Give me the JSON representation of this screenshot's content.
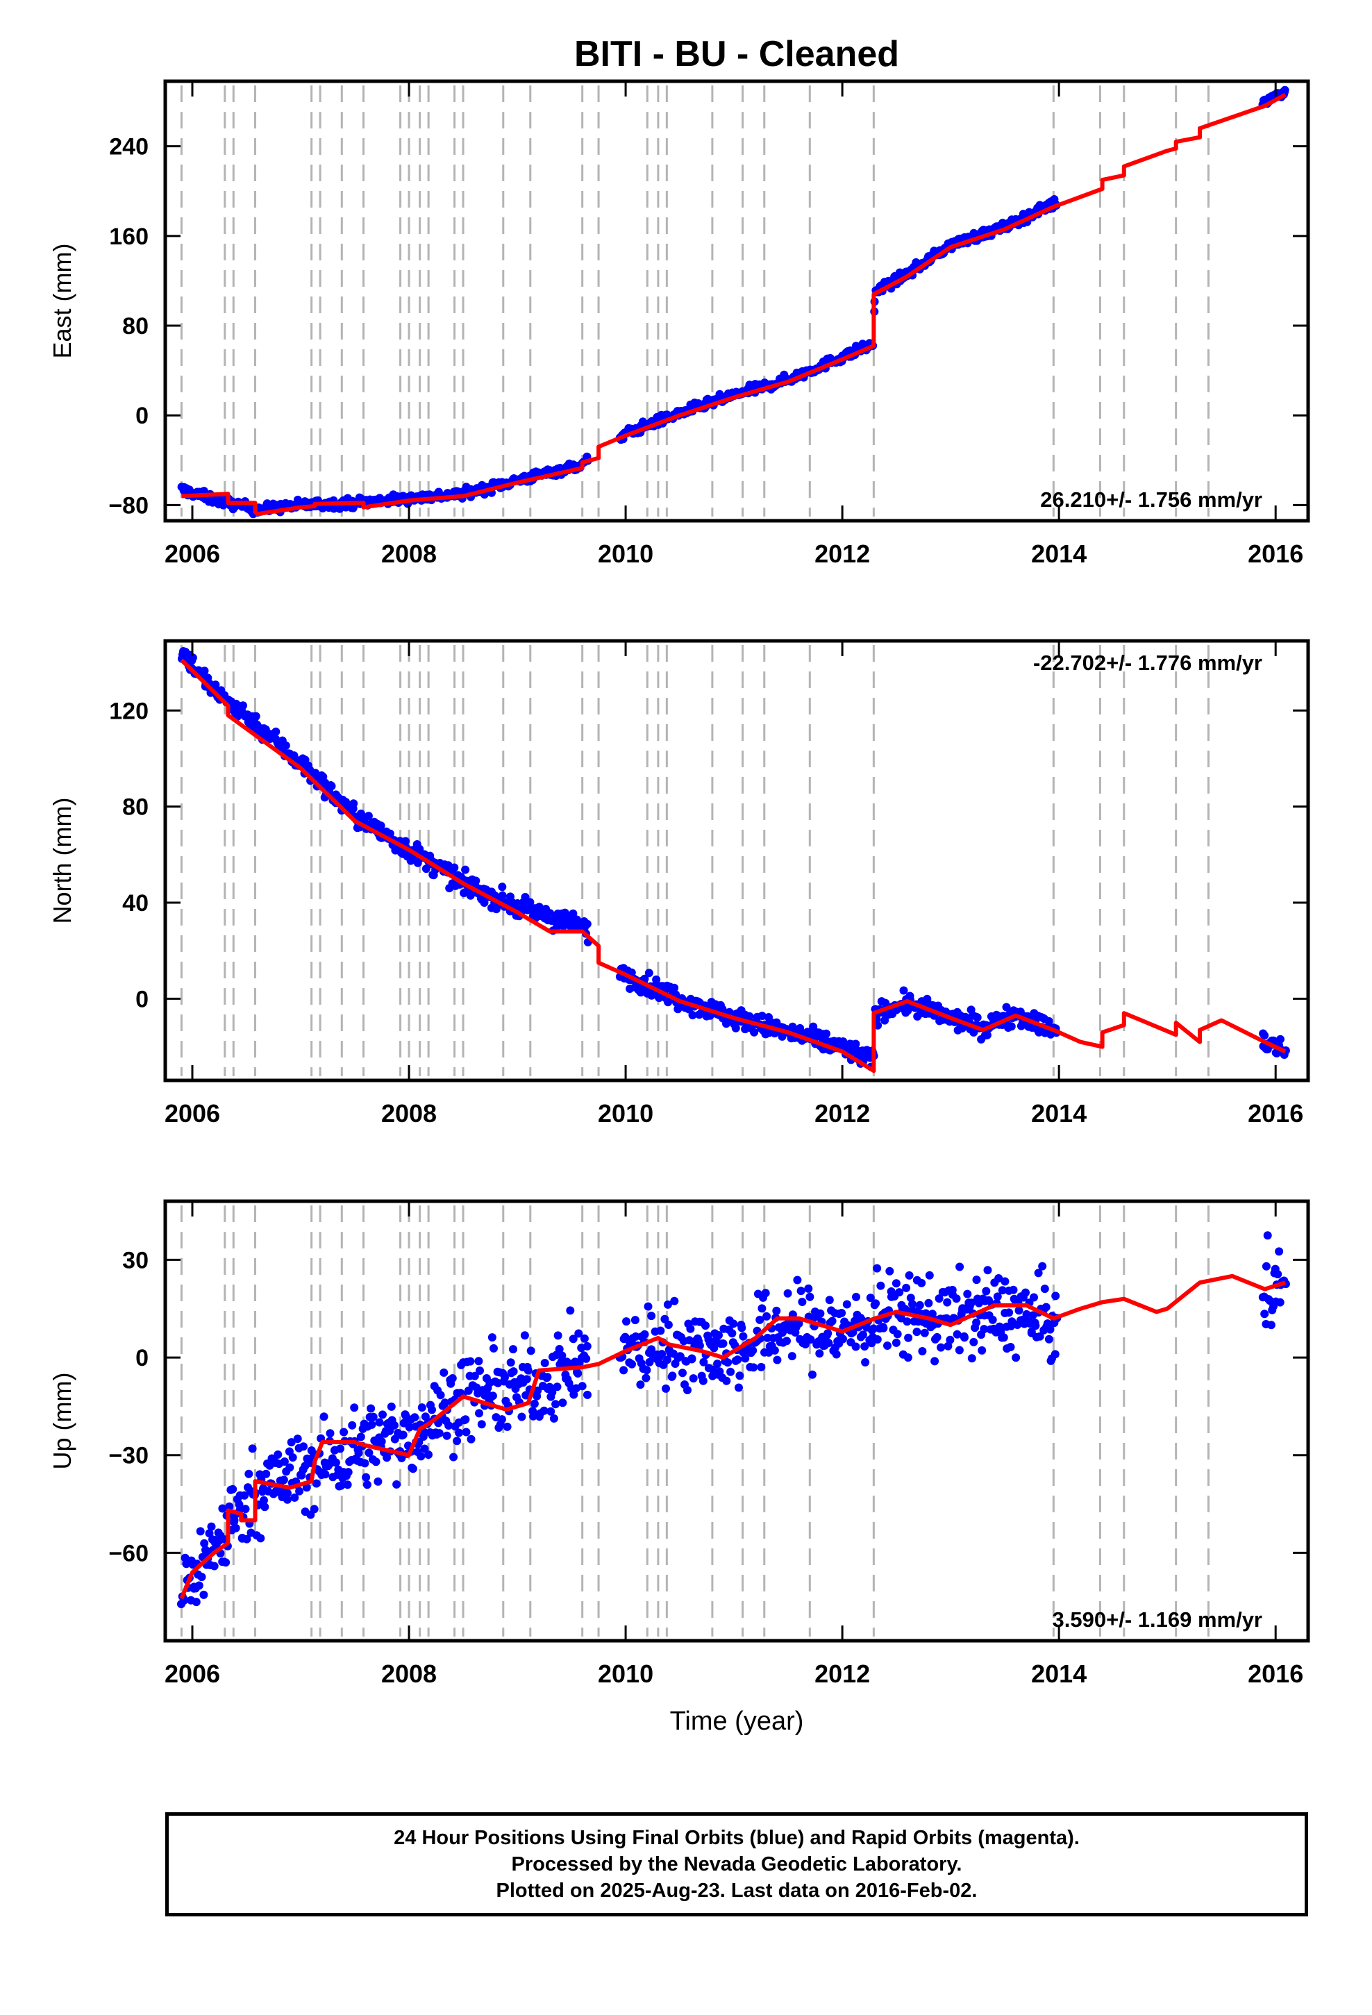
{
  "title": "BITI  - BU - Cleaned",
  "colors": {
    "final_orbit_points": "#0000ff",
    "model_fit": "#ff0000",
    "steps": "#b4b4b4",
    "frame": "#000000"
  },
  "chart_data": [
    {
      "type": "scatter",
      "ylabel": "East (mm)",
      "xlabel": "",
      "xlim": [
        2005.75,
        2016.3
      ],
      "ylim": [
        -94,
        298
      ],
      "yticks": [
        -80,
        0,
        80,
        160,
        240
      ],
      "xticks": [
        2006,
        2008,
        2010,
        2012,
        2014,
        2016
      ],
      "annotation": "26.210+/- 1.756 mm/yr",
      "annotation_position": "bottom-right",
      "series": [
        {
          "kind": "points",
          "data_range": [
            [
              2005.9,
              2009.65
            ],
            [
              2009.95,
              2013.98
            ],
            [
              2015.88,
              2016.09
            ]
          ],
          "profile": [
            [
              2005.9,
              -66
            ],
            [
              2006.2,
              -75
            ],
            [
              2006.6,
              -84
            ],
            [
              2007.0,
              -80
            ],
            [
              2007.5,
              -78
            ],
            [
              2008.0,
              -74
            ],
            [
              2008.5,
              -70
            ],
            [
              2009.0,
              -58
            ],
            [
              2009.6,
              -44
            ],
            [
              2010.0,
              -16
            ],
            [
              2010.5,
              2
            ],
            [
              2011.0,
              18
            ],
            [
              2011.5,
              32
            ],
            [
              2012.0,
              52
            ],
            [
              2012.29,
              64
            ],
            [
              2012.3,
              110
            ],
            [
              2012.6,
              126
            ],
            [
              2013.0,
              152
            ],
            [
              2013.5,
              168
            ],
            [
              2013.98,
              190
            ],
            [
              2015.9,
              280
            ],
            [
              2016.09,
              290
            ]
          ],
          "scatter": 3
        },
        {
          "kind": "model",
          "points": [
            [
              2005.9,
              -72
            ],
            [
              2006.33,
              -70
            ],
            [
              2006.33,
              -78
            ],
            [
              2006.58,
              -78
            ],
            [
              2006.58,
              -86
            ],
            [
              2006.6,
              -88
            ],
            [
              2007.0,
              -82
            ],
            [
              2007.13,
              -81
            ],
            [
              2007.13,
              -79
            ],
            [
              2007.58,
              -78
            ],
            [
              2007.58,
              -82
            ],
            [
              2008.0,
              -76
            ],
            [
              2008.5,
              -72
            ],
            [
              2009.0,
              -60
            ],
            [
              2009.6,
              -47
            ],
            [
              2009.6,
              -42
            ],
            [
              2009.75,
              -38
            ],
            [
              2009.75,
              -28
            ],
            [
              2010.0,
              -18
            ],
            [
              2010.5,
              0
            ],
            [
              2011.0,
              16
            ],
            [
              2011.5,
              30
            ],
            [
              2012.0,
              50
            ],
            [
              2012.29,
              62
            ],
            [
              2012.29,
              108
            ],
            [
              2012.6,
              124
            ],
            [
              2013.0,
              150
            ],
            [
              2013.5,
              166
            ],
            [
              2013.95,
              186
            ],
            [
              2014.4,
              202
            ],
            [
              2014.4,
              210
            ],
            [
              2014.6,
              214
            ],
            [
              2014.6,
              222
            ],
            [
              2015.0,
              236
            ],
            [
              2015.08,
              238
            ],
            [
              2015.08,
              244
            ],
            [
              2015.3,
              248
            ],
            [
              2015.3,
              256
            ],
            [
              2015.9,
              276
            ],
            [
              2016.09,
              286
            ]
          ]
        }
      ]
    },
    {
      "type": "scatter",
      "ylabel": "North (mm)",
      "xlabel": "",
      "xlim": [
        2005.75,
        2016.3
      ],
      "ylim": [
        -34,
        149
      ],
      "yticks": [
        0,
        40,
        80,
        120
      ],
      "xticks": [
        2006,
        2008,
        2010,
        2012,
        2014,
        2016
      ],
      "annotation": "-22.702+/- 1.776 mm/yr",
      "annotation_position": "top-right",
      "series": [
        {
          "kind": "points",
          "data_range": [
            [
              2005.9,
              2009.65
            ],
            [
              2009.95,
              2013.98
            ],
            [
              2015.88,
              2016.09
            ]
          ],
          "profile": [
            [
              2005.9,
              145
            ],
            [
              2006.2,
              128
            ],
            [
              2006.5,
              118
            ],
            [
              2007.0,
              98
            ],
            [
              2007.5,
              76
            ],
            [
              2008.0,
              62
            ],
            [
              2008.5,
              48
            ],
            [
              2009.0,
              38
            ],
            [
              2009.6,
              30
            ],
            [
              2010.0,
              10
            ],
            [
              2010.5,
              0
            ],
            [
              2011.0,
              -8
            ],
            [
              2011.5,
              -14
            ],
            [
              2012.0,
              -20
            ],
            [
              2012.29,
              -26
            ],
            [
              2012.3,
              -6
            ],
            [
              2012.6,
              -2
            ],
            [
              2013.0,
              -8
            ],
            [
              2013.3,
              -12
            ],
            [
              2013.6,
              -6
            ],
            [
              2013.98,
              -14
            ],
            [
              2015.9,
              -18
            ],
            [
              2016.09,
              -22
            ]
          ],
          "scatter": 3
        },
        {
          "kind": "model",
          "points": [
            [
              2005.9,
              141
            ],
            [
              2006.33,
              122
            ],
            [
              2006.33,
              118
            ],
            [
              2007.0,
              96
            ],
            [
              2007.5,
              74
            ],
            [
              2008.0,
              62
            ],
            [
              2008.5,
              48
            ],
            [
              2009.0,
              36
            ],
            [
              2009.3,
              28
            ],
            [
              2009.6,
              28
            ],
            [
              2009.75,
              22
            ],
            [
              2009.75,
              15
            ],
            [
              2010.0,
              10
            ],
            [
              2010.5,
              -1
            ],
            [
              2011.0,
              -8
            ],
            [
              2011.5,
              -14
            ],
            [
              2012.0,
              -22
            ],
            [
              2012.29,
              -30
            ],
            [
              2012.29,
              -6
            ],
            [
              2012.6,
              -1
            ],
            [
              2013.0,
              -8
            ],
            [
              2013.3,
              -13
            ],
            [
              2013.6,
              -7
            ],
            [
              2013.95,
              -13
            ],
            [
              2014.2,
              -18
            ],
            [
              2014.4,
              -20
            ],
            [
              2014.4,
              -14
            ],
            [
              2014.6,
              -11
            ],
            [
              2014.6,
              -6
            ],
            [
              2015.08,
              -15
            ],
            [
              2015.08,
              -10
            ],
            [
              2015.3,
              -18
            ],
            [
              2015.3,
              -13
            ],
            [
              2015.5,
              -9
            ],
            [
              2015.9,
              -18
            ],
            [
              2016.09,
              -22
            ]
          ]
        }
      ]
    },
    {
      "type": "scatter",
      "ylabel": "Up (mm)",
      "xlabel": "Time (year)",
      "xlim": [
        2005.75,
        2016.3
      ],
      "ylim": [
        -87,
        48
      ],
      "yticks": [
        -60,
        -30,
        0,
        30
      ],
      "xticks": [
        2006,
        2008,
        2010,
        2012,
        2014,
        2016
      ],
      "annotation": "3.590+/- 1.169 mm/yr",
      "annotation_position": "bottom-right",
      "series": [
        {
          "kind": "points",
          "data_range": [
            [
              2005.9,
              2009.65
            ],
            [
              2009.95,
              2013.98
            ],
            [
              2015.88,
              2016.09
            ]
          ],
          "profile": [
            [
              2005.9,
              -72
            ],
            [
              2006.2,
              -58
            ],
            [
              2006.6,
              -40
            ],
            [
              2007.0,
              -36
            ],
            [
              2007.5,
              -28
            ],
            [
              2008.0,
              -24
            ],
            [
              2008.5,
              -12
            ],
            [
              2009.0,
              -10
            ],
            [
              2009.6,
              -2
            ],
            [
              2010.0,
              2
            ],
            [
              2010.5,
              4
            ],
            [
              2011.0,
              2
            ],
            [
              2011.5,
              10
            ],
            [
              2012.0,
              8
            ],
            [
              2012.5,
              14
            ],
            [
              2013.0,
              12
            ],
            [
              2013.5,
              14
            ],
            [
              2013.98,
              10
            ],
            [
              2015.9,
              18
            ],
            [
              2016.09,
              24
            ]
          ],
          "scatter": 9
        },
        {
          "kind": "model",
          "points": [
            [
              2005.9,
              -74
            ],
            [
              2006.0,
              -66
            ],
            [
              2006.2,
              -60
            ],
            [
              2006.33,
              -57
            ],
            [
              2006.33,
              -47
            ],
            [
              2006.45,
              -48
            ],
            [
              2006.45,
              -50
            ],
            [
              2006.58,
              -50
            ],
            [
              2006.58,
              -38
            ],
            [
              2006.9,
              -40
            ],
            [
              2007.1,
              -38
            ],
            [
              2007.13,
              -32
            ],
            [
              2007.2,
              -26
            ],
            [
              2007.5,
              -26
            ],
            [
              2007.6,
              -27
            ],
            [
              2008.0,
              -30
            ],
            [
              2008.1,
              -22
            ],
            [
              2008.2,
              -20
            ],
            [
              2008.5,
              -12
            ],
            [
              2008.9,
              -16
            ],
            [
              2009.1,
              -14
            ],
            [
              2009.2,
              -4
            ],
            [
              2009.6,
              -3
            ],
            [
              2009.75,
              -2
            ],
            [
              2010.0,
              2
            ],
            [
              2010.3,
              6
            ],
            [
              2010.4,
              4
            ],
            [
              2010.7,
              2
            ],
            [
              2010.9,
              0
            ],
            [
              2011.0,
              2
            ],
            [
              2011.2,
              6
            ],
            [
              2011.4,
              12
            ],
            [
              2011.6,
              12
            ],
            [
              2012.0,
              8
            ],
            [
              2012.3,
              12
            ],
            [
              2012.5,
              14
            ],
            [
              2012.8,
              12
            ],
            [
              2013.0,
              10
            ],
            [
              2013.4,
              16
            ],
            [
              2013.7,
              16
            ],
            [
              2013.95,
              12
            ],
            [
              2014.2,
              15
            ],
            [
              2014.4,
              17
            ],
            [
              2014.6,
              18
            ],
            [
              2014.9,
              14
            ],
            [
              2015.0,
              15
            ],
            [
              2015.3,
              23
            ],
            [
              2015.6,
              25
            ],
            [
              2015.9,
              21
            ],
            [
              2016.09,
              23
            ]
          ]
        }
      ]
    }
  ],
  "step_epochs": [
    2005.9,
    2006.3,
    2006.38,
    2006.58,
    2007.1,
    2007.18,
    2007.38,
    2007.58,
    2007.92,
    2008.0,
    2008.1,
    2008.18,
    2008.42,
    2008.5,
    2008.87,
    2009.12,
    2009.6,
    2009.75,
    2010.2,
    2010.3,
    2010.38,
    2010.8,
    2011.08,
    2011.28,
    2011.7,
    2012.29,
    2013.95,
    2014.38,
    2014.6,
    2015.08,
    2015.38
  ],
  "footer": {
    "line1": "24 Hour Positions Using Final Orbits (blue) and Rapid Orbits (magenta).",
    "line2": "Processed by the Nevada Geodetic Laboratory.",
    "line3": "Plotted on 2025-Aug-23. Last data on 2016-Feb-02."
  }
}
